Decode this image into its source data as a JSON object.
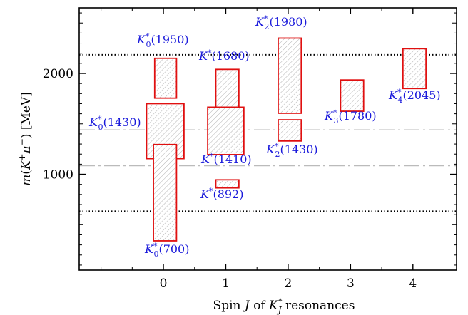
{
  "chart_data": {
    "type": "box",
    "xlabel": "Spin J of K*J resonances",
    "ylabel": "m(K+π−) [MeV]",
    "xlim": [
      -1.35,
      4.7
    ],
    "ylim": [
      1000,
      2650
    ],
    "ylim_display": [
      50,
      2650
    ],
    "xticks": [
      "0",
      "1",
      "2",
      "3",
      "4"
    ],
    "yticks": [
      "1000",
      "2000"
    ],
    "grid": false,
    "reference_lines": [
      {
        "style": "dotted",
        "color": "#000000",
        "y": 2185
      },
      {
        "style": "dotted",
        "color": "#000000",
        "y": 634
      },
      {
        "style": "dashdot",
        "color": "#bbbbbb",
        "y": 1440
      },
      {
        "style": "dashdot",
        "color": "#bbbbbb",
        "y": 1085
      }
    ],
    "box_color": "#e01010",
    "label_color": "#1a1adb",
    "resonances": [
      {
        "label": {
          "base": "K",
          "sup": "*",
          "sub": "0",
          "mass": "(1950)"
        },
        "J": 0,
        "x0": -0.14,
        "x1": 0.21,
        "y0": 1755,
        "y1": 2150
      },
      {
        "label": {
          "base": "K",
          "sup": "*",
          "sub": "0",
          "mass": "(1430)"
        },
        "J": 0,
        "x0": -0.27,
        "x1": 0.33,
        "y0": 1155,
        "y1": 1700
      },
      {
        "label": {
          "base": "K",
          "sup": "*",
          "sub": "0",
          "mass": "(700)"
        },
        "J": 0,
        "x0": -0.16,
        "x1": 0.21,
        "y0": 340,
        "y1": 1295
      },
      {
        "label": {
          "base": "K",
          "sup": "*",
          "sub": "",
          "mass": "(1680)"
        },
        "J": 1,
        "x0": 0.84,
        "x1": 1.21,
        "y0": 1400,
        "y1": 2040
      },
      {
        "label": {
          "base": "K",
          "sup": "*",
          "sub": "",
          "mass": "(1410)"
        },
        "J": 1,
        "x0": 0.71,
        "x1": 1.29,
        "y0": 1195,
        "y1": 1665
      },
      {
        "label": {
          "base": "K",
          "sup": "*",
          "sub": "",
          "mass": "(892)"
        },
        "J": 1,
        "x0": 0.84,
        "x1": 1.21,
        "y0": 865,
        "y1": 945
      },
      {
        "label": {
          "base": "K",
          "sup": "*",
          "sub": "2",
          "mass": "(1980)"
        },
        "J": 2,
        "x0": 1.84,
        "x1": 2.21,
        "y0": 1605,
        "y1": 2350
      },
      {
        "label": {
          "base": "K",
          "sup": "*",
          "sub": "2",
          "mass": "(1430)"
        },
        "J": 2,
        "x0": 1.84,
        "x1": 2.21,
        "y0": 1330,
        "y1": 1540
      },
      {
        "label": {
          "base": "K",
          "sup": "*",
          "sub": "3",
          "mass": "(1780)"
        },
        "J": 3,
        "x0": 2.84,
        "x1": 3.21,
        "y0": 1625,
        "y1": 1935
      },
      {
        "label": {
          "base": "K",
          "sup": "*",
          "sub": "4",
          "mass": "(2045)"
        },
        "J": 4,
        "x0": 3.84,
        "x1": 4.21,
        "y0": 1850,
        "y1": 2245
      }
    ]
  }
}
